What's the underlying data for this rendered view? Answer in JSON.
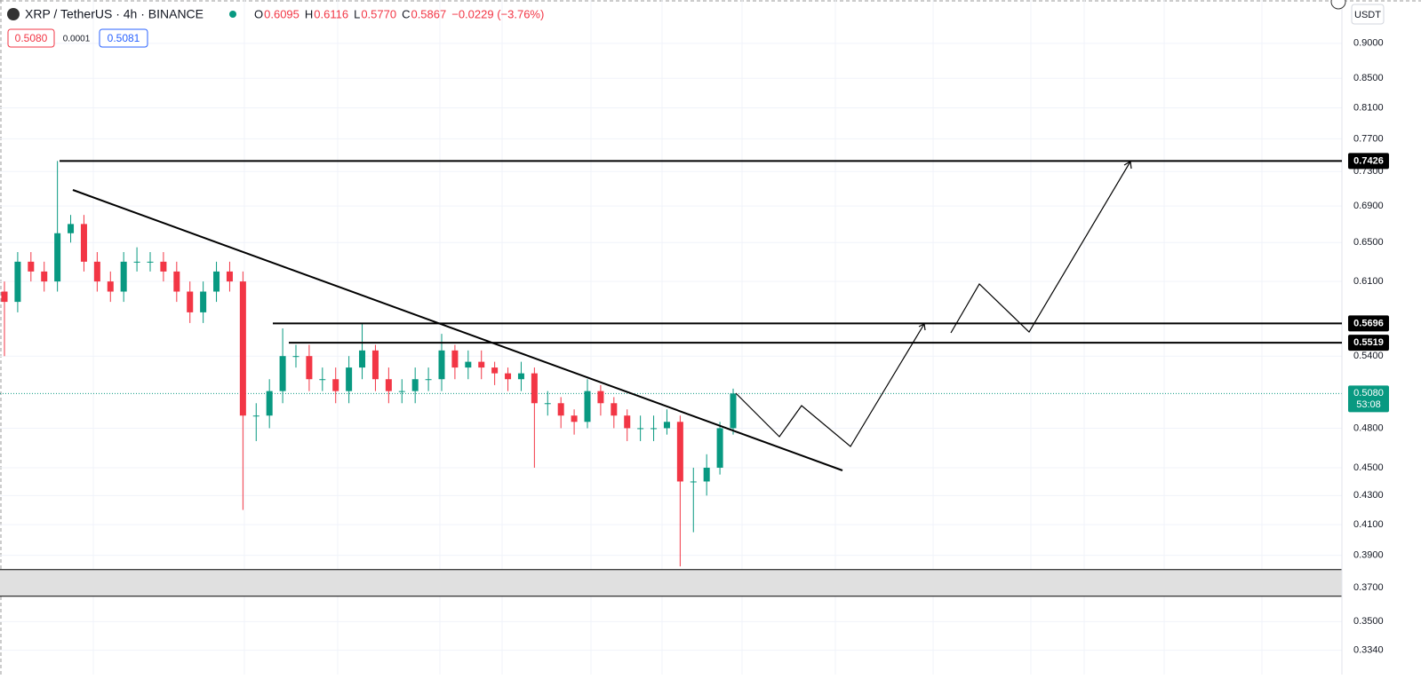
{
  "header": {
    "symbol": "XRP / TetherUS · 4h · BINANCE",
    "ohlc": [
      {
        "label": "O",
        "value": "0.6095"
      },
      {
        "label": "H",
        "value": "0.6116"
      },
      {
        "label": "L",
        "value": "0.5770"
      },
      {
        "label": "C",
        "value": "0.5867"
      }
    ],
    "change": "−0.0229 (−3.76%)",
    "sell": "0.5080",
    "spread": "0.0001",
    "buy": "0.5081"
  },
  "chart_data": {
    "type": "candlestick",
    "log_scale": true,
    "grid": true,
    "currency": "USDT",
    "up_color": "#089981",
    "down_color": "#f23645",
    "ylim": [
      0.329,
      0.966
    ],
    "yticks": [
      {
        "value": 0.9,
        "label": "0.9000"
      },
      {
        "value": 0.85,
        "label": "0.8500"
      },
      {
        "value": 0.81,
        "label": "0.8100"
      },
      {
        "value": 0.77,
        "label": "0.7700"
      },
      {
        "value": 0.73,
        "label": "0.7300"
      },
      {
        "value": 0.69,
        "label": "0.6900"
      },
      {
        "value": 0.65,
        "label": "0.6500"
      },
      {
        "value": 0.61,
        "label": "0.6100"
      },
      {
        "value": 0.54,
        "label": "0.5400"
      },
      {
        "value": 0.48,
        "label": "0.4800"
      },
      {
        "value": 0.45,
        "label": "0.4500"
      },
      {
        "value": 0.43,
        "label": "0.4300"
      },
      {
        "value": 0.41,
        "label": "0.4100"
      },
      {
        "value": 0.39,
        "label": "0.3900"
      },
      {
        "value": 0.37,
        "label": "0.3700"
      },
      {
        "value": 0.35,
        "label": "0.3500"
      },
      {
        "value": 0.334,
        "label": "0.3340"
      }
    ],
    "open": [
      0.6,
      0.59,
      0.63,
      0.62,
      0.61,
      0.66,
      0.67,
      0.63,
      0.61,
      0.6,
      0.63,
      0.63,
      0.63,
      0.62,
      0.6,
      0.58,
      0.6,
      0.62,
      0.61,
      0.49,
      0.49,
      0.51,
      0.54,
      0.54,
      0.52,
      0.52,
      0.51,
      0.53,
      0.545,
      0.52,
      0.51,
      0.51,
      0.52,
      0.52,
      0.545,
      0.53,
      0.535,
      0.53,
      0.525,
      0.52,
      0.525,
      0.5,
      0.5,
      0.49,
      0.485,
      0.51,
      0.5,
      0.49,
      0.48,
      0.48,
      0.48,
      0.485,
      0.44,
      0.44,
      0.45,
      0.48
    ],
    "high": [
      0.61,
      0.64,
      0.64,
      0.63,
      0.7426,
      0.68,
      0.68,
      0.64,
      0.62,
      0.64,
      0.645,
      0.64,
      0.64,
      0.63,
      0.61,
      0.61,
      0.63,
      0.63,
      0.62,
      0.5,
      0.52,
      0.565,
      0.55,
      0.55,
      0.53,
      0.53,
      0.54,
      0.57,
      0.55,
      0.53,
      0.52,
      0.53,
      0.53,
      0.56,
      0.55,
      0.545,
      0.545,
      0.535,
      0.53,
      0.535,
      0.53,
      0.51,
      0.505,
      0.495,
      0.52,
      0.515,
      0.505,
      0.495,
      0.49,
      0.49,
      0.495,
      0.49,
      0.45,
      0.46,
      0.485,
      0.512
    ],
    "low": [
      0.54,
      0.58,
      0.61,
      0.6,
      0.6,
      0.65,
      0.62,
      0.6,
      0.59,
      0.59,
      0.62,
      0.62,
      0.61,
      0.59,
      0.57,
      0.57,
      0.59,
      0.6,
      0.42,
      0.47,
      0.48,
      0.5,
      0.53,
      0.51,
      0.51,
      0.5,
      0.5,
      0.52,
      0.51,
      0.5,
      0.5,
      0.5,
      0.51,
      0.51,
      0.52,
      0.52,
      0.52,
      0.515,
      0.51,
      0.51,
      0.45,
      0.49,
      0.48,
      0.475,
      0.48,
      0.49,
      0.48,
      0.47,
      0.47,
      0.47,
      0.475,
      0.383,
      0.405,
      0.43,
      0.445,
      0.475
    ],
    "close": [
      0.59,
      0.63,
      0.62,
      0.61,
      0.66,
      0.67,
      0.63,
      0.61,
      0.6,
      0.63,
      0.63,
      0.63,
      0.62,
      0.6,
      0.58,
      0.6,
      0.62,
      0.61,
      0.49,
      0.49,
      0.51,
      0.54,
      0.54,
      0.52,
      0.52,
      0.51,
      0.53,
      0.545,
      0.52,
      0.51,
      0.51,
      0.52,
      0.52,
      0.545,
      0.53,
      0.535,
      0.53,
      0.525,
      0.52,
      0.525,
      0.5,
      0.5,
      0.49,
      0.485,
      0.51,
      0.5,
      0.49,
      0.48,
      0.48,
      0.48,
      0.485,
      0.44,
      0.44,
      0.45,
      0.48,
      0.508
    ],
    "levels": [
      {
        "value": 0.7426,
        "label": "0.7426"
      },
      {
        "value": 0.5696,
        "label": "0.5696"
      },
      {
        "value": 0.5519,
        "label": "0.5519"
      }
    ],
    "current_price": {
      "value": 0.508,
      "label": "0.5080",
      "countdown": "53:08"
    },
    "zone": [
      0.3648,
      0.381
    ]
  }
}
